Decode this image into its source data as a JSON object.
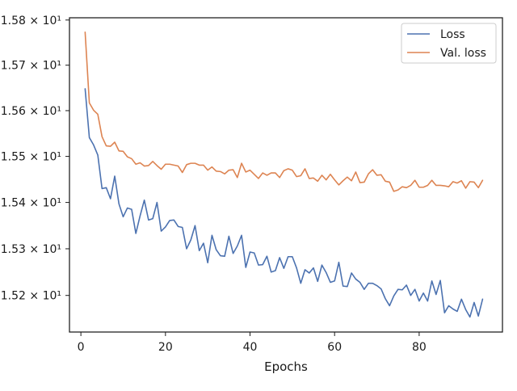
{
  "chart_data": {
    "type": "line",
    "title": "",
    "xlabel": "Epochs",
    "ylabel": "",
    "x_scale": "linear",
    "y_scale": "log",
    "xlim": [
      -2.7,
      99.7
    ],
    "ylim": [
      15.122,
      15.805
    ],
    "x_ticks": [
      0,
      20,
      40,
      60,
      80
    ],
    "y_ticks": [
      {
        "value": 15.2,
        "label": "1.52 × 10¹"
      },
      {
        "value": 15.3,
        "label": "1.53 × 10¹"
      },
      {
        "value": 15.4,
        "label": "1.54 × 10¹"
      },
      {
        "value": 15.5,
        "label": "1.55 × 10¹"
      },
      {
        "value": 15.6,
        "label": "1.56 × 10¹"
      },
      {
        "value": 15.7,
        "label": "1.57 × 10¹"
      },
      {
        "value": 15.8,
        "label": "1.58 × 10¹"
      }
    ],
    "grid": false,
    "legend_position": "top-right",
    "x": [
      1,
      2,
      3,
      4,
      5,
      6,
      7,
      8,
      9,
      10,
      11,
      12,
      13,
      14,
      15,
      16,
      17,
      18,
      19,
      20,
      21,
      22,
      23,
      24,
      25,
      26,
      27,
      28,
      29,
      30,
      31,
      32,
      33,
      34,
      35,
      36,
      37,
      38,
      39,
      40,
      41,
      42,
      43,
      44,
      45,
      46,
      47,
      48,
      49,
      50,
      51,
      52,
      53,
      54,
      55,
      56,
      57,
      58,
      59,
      60,
      61,
      62,
      63,
      64,
      65,
      66,
      67,
      68,
      69,
      70,
      71,
      72,
      73,
      74,
      75,
      76,
      77,
      78,
      79,
      80,
      81,
      82,
      83,
      84,
      85,
      86,
      87,
      88,
      89,
      90,
      91,
      92,
      93,
      94,
      95
    ],
    "series": [
      {
        "name": "Loss",
        "color": "#4c72b0",
        "values": [
          15.648,
          15.541,
          15.525,
          15.503,
          15.43,
          15.432,
          15.408,
          15.457,
          15.397,
          15.369,
          15.388,
          15.385,
          15.333,
          15.371,
          15.405,
          15.362,
          15.365,
          15.4,
          15.338,
          15.347,
          15.361,
          15.362,
          15.348,
          15.346,
          15.3,
          15.319,
          15.35,
          15.296,
          15.312,
          15.27,
          15.329,
          15.298,
          15.285,
          15.284,
          15.327,
          15.29,
          15.306,
          15.329,
          15.26,
          15.293,
          15.291,
          15.265,
          15.266,
          15.284,
          15.25,
          15.253,
          15.281,
          15.258,
          15.283,
          15.283,
          15.259,
          15.226,
          15.255,
          15.248,
          15.259,
          15.23,
          15.265,
          15.249,
          15.228,
          15.231,
          15.271,
          15.22,
          15.219,
          15.248,
          15.235,
          15.228,
          15.213,
          15.226,
          15.226,
          15.221,
          15.214,
          15.193,
          15.178,
          15.199,
          15.213,
          15.212,
          15.222,
          15.2,
          15.213,
          15.188,
          15.205,
          15.188,
          15.231,
          15.202,
          15.232,
          15.163,
          15.178,
          15.171,
          15.166,
          15.192,
          15.17,
          15.154,
          15.185,
          15.156,
          15.192
        ]
      },
      {
        "name": "Val. loss",
        "color": "#dd8452",
        "values": [
          15.773,
          15.617,
          15.601,
          15.592,
          15.543,
          15.523,
          15.522,
          15.531,
          15.512,
          15.511,
          15.499,
          15.495,
          15.483,
          15.486,
          15.479,
          15.48,
          15.489,
          15.48,
          15.472,
          15.483,
          15.483,
          15.481,
          15.479,
          15.465,
          15.482,
          15.485,
          15.485,
          15.481,
          15.481,
          15.47,
          15.477,
          15.468,
          15.467,
          15.462,
          15.47,
          15.471,
          15.454,
          15.485,
          15.466,
          15.47,
          15.461,
          15.452,
          15.464,
          15.459,
          15.464,
          15.464,
          15.454,
          15.469,
          15.473,
          15.47,
          15.456,
          15.458,
          15.473,
          15.452,
          15.453,
          15.446,
          15.459,
          15.449,
          15.461,
          15.449,
          15.438,
          15.447,
          15.455,
          15.447,
          15.466,
          15.443,
          15.444,
          15.462,
          15.471,
          15.459,
          15.46,
          15.446,
          15.444,
          15.424,
          15.427,
          15.434,
          15.432,
          15.437,
          15.448,
          15.433,
          15.433,
          15.437,
          15.448,
          15.437,
          15.437,
          15.436,
          15.434,
          15.445,
          15.442,
          15.447,
          15.431,
          15.445,
          15.444,
          15.432,
          15.448
        ]
      }
    ]
  }
}
